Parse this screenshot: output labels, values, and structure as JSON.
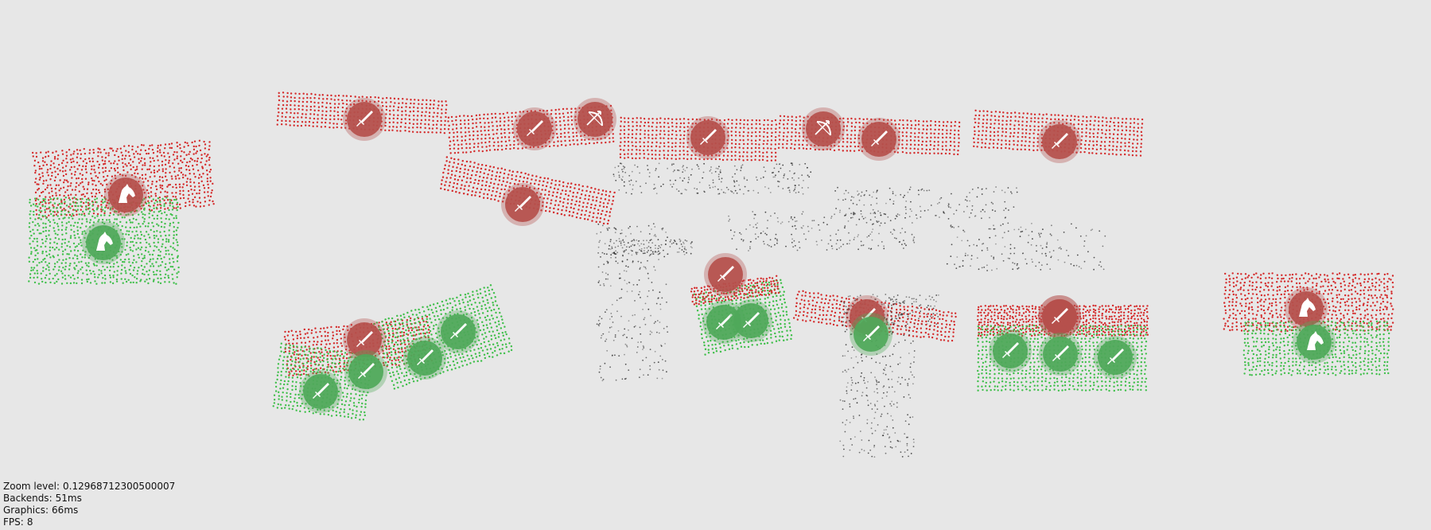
{
  "hud": {
    "zoom_label": "Zoom level:",
    "zoom_value": "0.12968712300500007",
    "backends_label": "Backends:",
    "backends_value": "51ms",
    "graphics_label": "Graphics:",
    "graphics_value": "66ms",
    "fps_label": "FPS:",
    "fps_value": "8"
  },
  "colors": {
    "background": "#e7e7e7",
    "red_soldier": "#d42a2a",
    "green_soldier": "#3fbf4a",
    "dead_marker": "#222222",
    "red_badge": "#b5504c",
    "green_badge": "#4fa85a",
    "badge_icon": "#ffffff"
  },
  "units": [
    {
      "team": "red",
      "kind": "cavalry-icon"
    },
    {
      "team": "green",
      "kind": "cavalry-icon"
    },
    {
      "team": "red",
      "kind": "sword-icon"
    },
    {
      "team": "red",
      "kind": "sword-icon"
    },
    {
      "team": "red",
      "kind": "bow-icon"
    },
    {
      "team": "red",
      "kind": "sword-icon"
    },
    {
      "team": "red",
      "kind": "bow-icon"
    },
    {
      "team": "red",
      "kind": "sword-icon"
    },
    {
      "team": "red",
      "kind": "sword-icon"
    },
    {
      "team": "red",
      "kind": "sword-icon"
    },
    {
      "team": "red",
      "kind": "sword-icon"
    },
    {
      "team": "red",
      "kind": "sword-icon"
    },
    {
      "team": "green",
      "kind": "sword-icon"
    },
    {
      "team": "green",
      "kind": "sword-icon"
    },
    {
      "team": "green",
      "kind": "sword-icon"
    },
    {
      "team": "green",
      "kind": "sword-icon"
    },
    {
      "team": "red",
      "kind": "sword-icon"
    },
    {
      "team": "green",
      "kind": "sword-icon"
    },
    {
      "team": "green",
      "kind": "sword-icon"
    },
    {
      "team": "red",
      "kind": "sword-icon"
    },
    {
      "team": "green",
      "kind": "sword-icon"
    },
    {
      "team": "red",
      "kind": "sword-icon"
    },
    {
      "team": "green",
      "kind": "sword-icon"
    },
    {
      "team": "green",
      "kind": "sword-icon"
    },
    {
      "team": "green",
      "kind": "sword-icon"
    },
    {
      "team": "red",
      "kind": "cavalry-icon"
    },
    {
      "team": "green",
      "kind": "cavalry-icon"
    }
  ]
}
